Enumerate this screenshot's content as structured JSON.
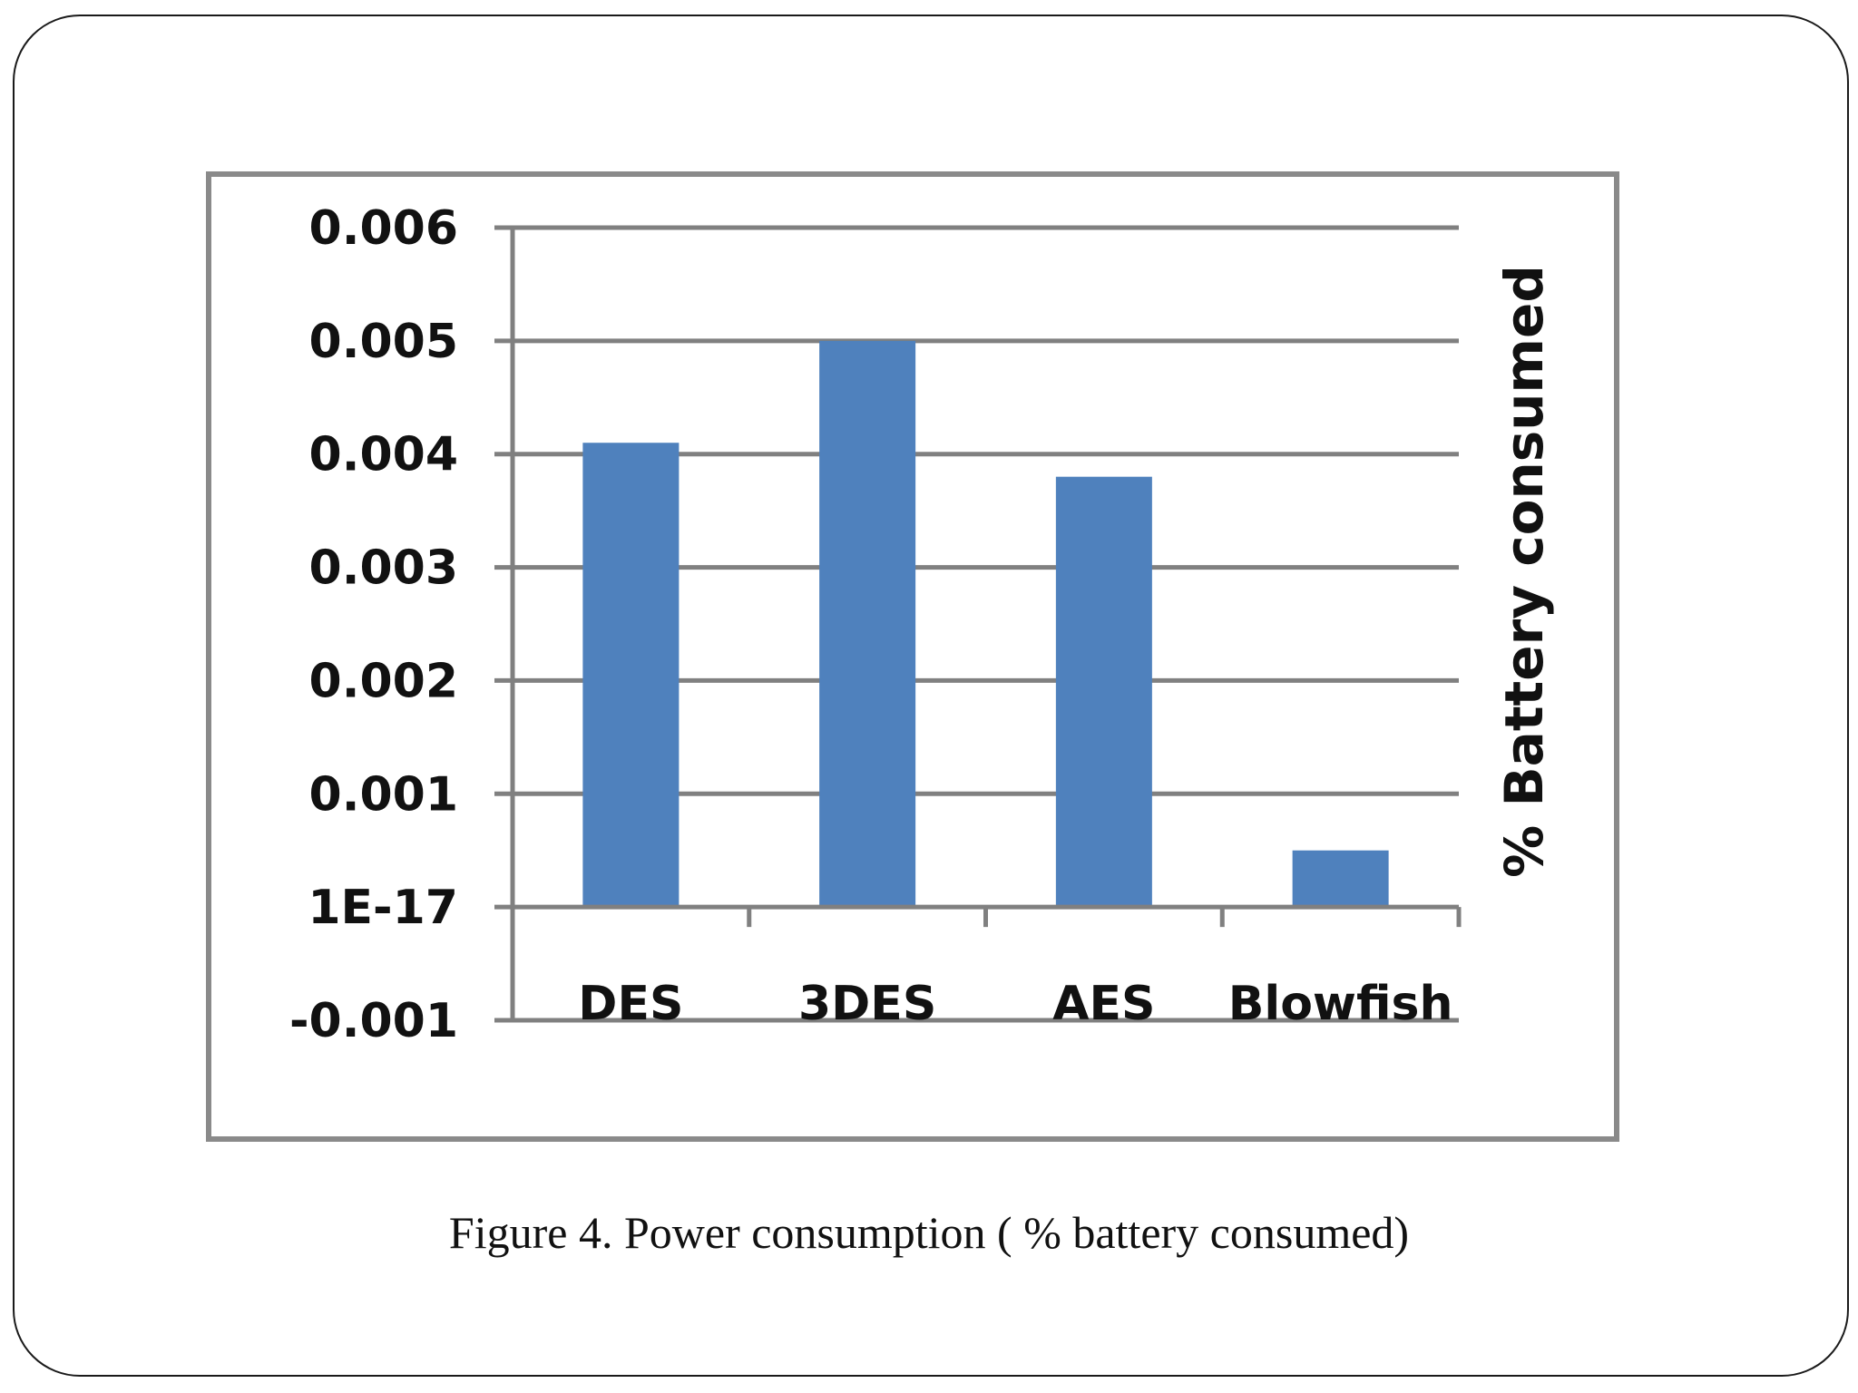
{
  "caption": "Figure 4. Power consumption ( % battery consumed)",
  "chart_data": {
    "type": "bar",
    "title": "",
    "xlabel": "",
    "ylabel": "% Battery consumed",
    "categories": [
      "DES",
      "3DES",
      "AES",
      "Blowfish"
    ],
    "values": [
      0.0041,
      0.005,
      0.0038,
      0.0005
    ],
    "yticks": [
      -0.001,
      0,
      0.001,
      0.002,
      0.003,
      0.004,
      0.005,
      0.006
    ],
    "ytick_labels": [
      "-0.001",
      "1E-17",
      "0.001",
      "0.002",
      "0.003",
      "0.004",
      "0.005",
      "0.006"
    ],
    "ylim": [
      -0.001,
      0.006
    ],
    "grid": true,
    "bar_color": "#4f81bd",
    "gridline_color": "#808080"
  }
}
